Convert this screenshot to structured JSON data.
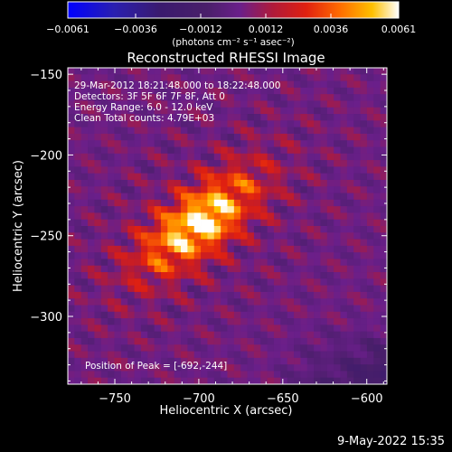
{
  "chart_data": {
    "type": "heatmap",
    "title": "Reconstructed RHESSI Image",
    "xlabel": "Heliocentric X (arcsec)",
    "ylabel": "Heliocentric Y (arcsec)",
    "xlim": [
      -778,
      -588
    ],
    "ylim": [
      -342,
      -146
    ],
    "x_ticks": [
      -750,
      -700,
      -650,
      -600
    ],
    "y_ticks": [
      -150,
      -200,
      -250,
      -300
    ],
    "x_tick_labels": [
      "−750",
      "−700",
      "−650",
      "−600"
    ],
    "y_tick_labels": [
      "−150",
      "−200",
      "−250",
      "−300"
    ],
    "colorbar": {
      "min": -0.0061,
      "max": 0.0061,
      "ticks": [
        -0.0061,
        -0.0036,
        -0.0012,
        0.0012,
        0.0036,
        0.0061
      ],
      "tick_labels": [
        "−0.0061",
        "−0.0036",
        "−0.0012",
        "0.0012",
        "0.0036",
        "0.0061"
      ],
      "unit_label": "(photons cm⁻² s⁻¹ asec⁻²)",
      "colors": [
        "#0000ff",
        "#2a1fb0",
        "#3a1a6e",
        "#4a1f6a",
        "#6a1f8a",
        "#b01a3a",
        "#e02010",
        "#ff6a00",
        "#ffc000",
        "#ffffff"
      ]
    },
    "annotations": [
      "29-Mar-2012 18:21:48.000 to 18:22:48.000",
      "Detectors: 3F 5F 6F 7F 8F, Att 0",
      "Energy Range: 6.0 - 12.0 keV",
      "Clean     Total counts: 4.79E+03"
    ],
    "peak_label": "Position of Peak = [-692,-244]",
    "peak": [
      -692,
      -244
    ],
    "source": {
      "center": [
        -700,
        -242
      ],
      "sigma_major": 30,
      "sigma_minor": 13,
      "angle_deg": 40,
      "amplitude": 0.0061
    },
    "grid": false
  },
  "timestamp": "9-May-2022 15:35"
}
